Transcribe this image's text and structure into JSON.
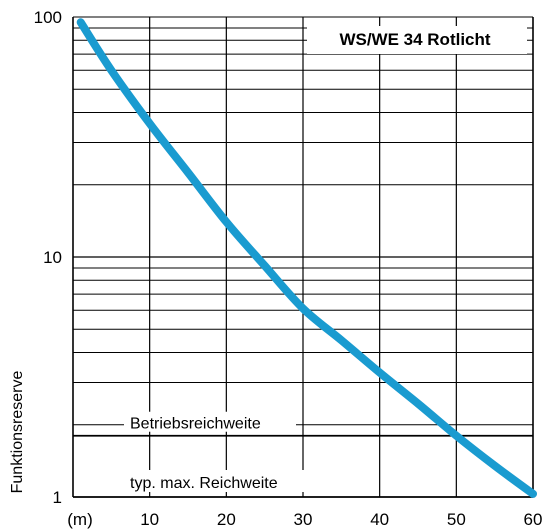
{
  "chart_data": {
    "type": "line",
    "title": "WS/WE 34 Rotlicht",
    "ylabel": "Funktionsreserve",
    "x_unit": "(m)",
    "xlim": [
      0,
      60
    ],
    "ylim": [
      1,
      100
    ],
    "y_scale": "log",
    "x_ticks": [
      10,
      20,
      30,
      40,
      50,
      60
    ],
    "x_tick_labels": [
      "10",
      "20",
      "30",
      "40",
      "50",
      "60"
    ],
    "y_ticks": [
      1,
      10,
      100
    ],
    "y_tick_labels": [
      "1",
      "10",
      "100"
    ],
    "grid": true,
    "series": [
      {
        "color": "#1a9bd0",
        "x": [
          1,
          5,
          10,
          15,
          20,
          25,
          30,
          35,
          40,
          45,
          50,
          55,
          60
        ],
        "y": [
          95,
          60,
          36,
          22.5,
          14,
          9.2,
          6.1,
          4.5,
          3.3,
          2.45,
          1.8,
          1.35,
          1.03
        ]
      }
    ],
    "annotations": [
      {
        "text": "Betriebsreichweite",
        "y": 1.8
      },
      {
        "text": "typ. max. Reichweite",
        "y": 1
      }
    ]
  }
}
